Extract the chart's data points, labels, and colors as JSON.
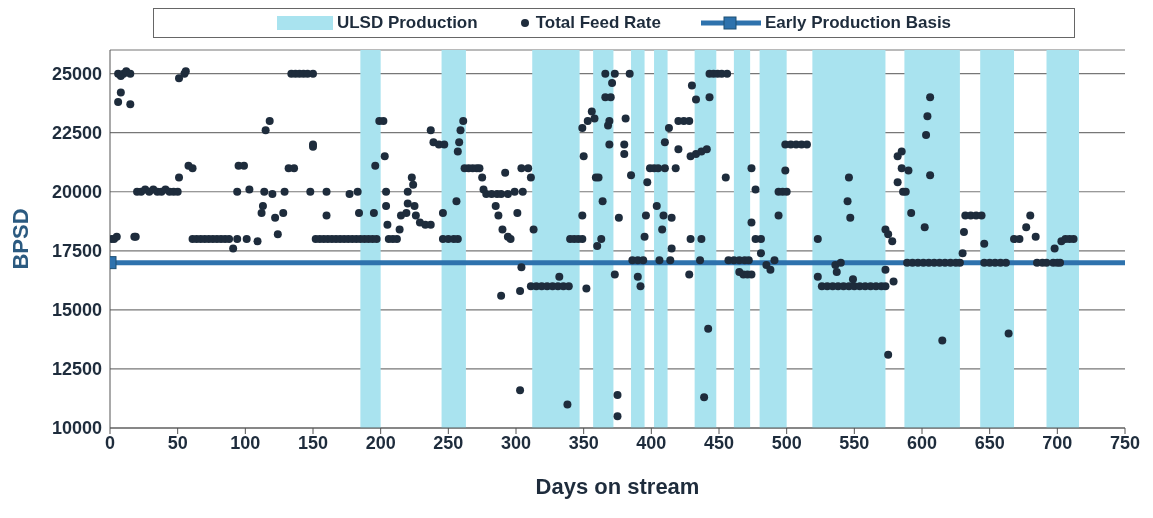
{
  "chart_data": {
    "type": "scatter",
    "xlabel": "Days on stream",
    "ylabel": "BPSD",
    "xlim": [
      0,
      750
    ],
    "xticks": [
      0,
      50,
      100,
      150,
      200,
      250,
      300,
      350,
      400,
      450,
      500,
      550,
      600,
      650,
      700,
      750
    ],
    "ylim": [
      10000,
      26000
    ],
    "yticks": [
      10000,
      12500,
      15000,
      17500,
      20000,
      22500,
      25000
    ],
    "grid": "y",
    "legend": "top",
    "bands": [
      {
        "axis": "x",
        "from": 185,
        "to": 200,
        "label": "ULSD Production",
        "color": "#a9e3ef"
      },
      {
        "axis": "x",
        "from": 245,
        "to": 263,
        "label": null,
        "color": "#a9e3ef"
      },
      {
        "axis": "x",
        "from": 312,
        "to": 347,
        "label": null,
        "color": "#a9e3ef"
      },
      {
        "axis": "x",
        "from": 357,
        "to": 372,
        "label": null,
        "color": "#a9e3ef"
      },
      {
        "axis": "x",
        "from": 385,
        "to": 395,
        "label": null,
        "color": "#a9e3ef"
      },
      {
        "axis": "x",
        "from": 402,
        "to": 412,
        "label": null,
        "color": "#a9e3ef"
      },
      {
        "axis": "x",
        "from": 432,
        "to": 448,
        "label": null,
        "color": "#a9e3ef"
      },
      {
        "axis": "x",
        "from": 461,
        "to": 473,
        "label": null,
        "color": "#a9e3ef"
      },
      {
        "axis": "x",
        "from": 480,
        "to": 500,
        "label": null,
        "color": "#a9e3ef"
      },
      {
        "axis": "x",
        "from": 519,
        "to": 573,
        "label": null,
        "color": "#a9e3ef"
      },
      {
        "axis": "x",
        "from": 587,
        "to": 628,
        "label": null,
        "color": "#a9e3ef"
      },
      {
        "axis": "x",
        "from": 643,
        "to": 668,
        "label": null,
        "color": "#a9e3ef"
      },
      {
        "axis": "x",
        "from": 692,
        "to": 716,
        "label": null,
        "color": "#a9e3ef"
      }
    ],
    "series": [
      {
        "name": "Total Feed Rate",
        "color": "#1e2c3c",
        "marker": "circle",
        "x": [
          1,
          3,
          5,
          6,
          8,
          10,
          12,
          15,
          8,
          6,
          15,
          18,
          19,
          20,
          23,
          26,
          29,
          32,
          35,
          38,
          41,
          44,
          47,
          50,
          51,
          58,
          61,
          51,
          55,
          56,
          61,
          64,
          67,
          70,
          73,
          76,
          79,
          82,
          85,
          88,
          91,
          94,
          95,
          99,
          94,
          103,
          101,
          109,
          114,
          120,
          113,
          112,
          115,
          118,
          124,
          122,
          128,
          129,
          132,
          136,
          134,
          137,
          140,
          143,
          146,
          150,
          148,
          160,
          150,
          150,
          160,
          152,
          155,
          158,
          161,
          164,
          167,
          170,
          173,
          176,
          179,
          182,
          185,
          177,
          183,
          184,
          188,
          191,
          194,
          197,
          196,
          195,
          203,
          199,
          202,
          204,
          204,
          205,
          206,
          209,
          212,
          214,
          215,
          219,
          220,
          223,
          224,
          220,
          225,
          226,
          229,
          233,
          237,
          237,
          239,
          243,
          247,
          246,
          246,
          250,
          254,
          257,
          256,
          257,
          258,
          259,
          261,
          262,
          265,
          268,
          271,
          273,
          275,
          276,
          278,
          282,
          286,
          289,
          285,
          287,
          292,
          290,
          294,
          296,
          294,
          299,
          305,
          301,
          304,
          309,
          311,
          313,
          289,
          303,
          304,
          303,
          338,
          311,
          315,
          319,
          323,
          327,
          331,
          335,
          339,
          332,
          340,
          343,
          346,
          349,
          352,
          349,
          350,
          349,
          353,
          356,
          358,
          359,
          361,
          364,
          360,
          363,
          366,
          366,
          368,
          369,
          369,
          370,
          371,
          373,
          375,
          375,
          376,
          373,
          380,
          380,
          381,
          384,
          385,
          386,
          390,
          394,
          390,
          392,
          395,
          396,
          397,
          399,
          402,
          405,
          404,
          409,
          408,
          415,
          406,
          414,
          415,
          410,
          418,
          410,
          413,
          420,
          420,
          424,
          428,
          428,
          429,
          429,
          433,
          437,
          441,
          430,
          433,
          443,
          437,
          436,
          442,
          439,
          443,
          446,
          449,
          452,
          456,
          455,
          457,
          461,
          465,
          469,
          472,
          465,
          468,
          471,
          474,
          474,
          477,
          474,
          477,
          481,
          481,
          485,
          488,
          491,
          494,
          494,
          497,
          500,
          499,
          499,
          503,
          507,
          511,
          515,
          523,
          523,
          526,
          530,
          534,
          538,
          542,
          546,
          550,
          554,
          558,
          562,
          566,
          570,
          573,
          536,
          537,
          549,
          546,
          545,
          547,
          540,
          573,
          575,
          578,
          573,
          579,
          575,
          582,
          585,
          585,
          590,
          582,
          586,
          588,
          592,
          589,
          593,
          597,
          601,
          605,
          609,
          613,
          617,
          621,
          625,
          628,
          602,
          603,
          604,
          606,
          606,
          615,
          630,
          631,
          632,
          636,
          640,
          644,
          646,
          646,
          650,
          654,
          658,
          662,
          664,
          668,
          672,
          677,
          680,
          684,
          685,
          689,
          692,
          697,
          700,
          702,
          698,
          703,
          706,
          709,
          712
        ],
        "values": [
          18000,
          18000,
          18100,
          25000,
          24900,
          25000,
          25100,
          25000,
          24200,
          23800,
          23700,
          18100,
          18100,
          20000,
          20000,
          20100,
          20000,
          20100,
          20000,
          20000,
          20100,
          20000,
          20000,
          20000,
          20600,
          21100,
          21000,
          24800,
          25000,
          25100,
          18000,
          18000,
          18000,
          18000,
          18000,
          18000,
          18000,
          18000,
          18000,
          18000,
          17600,
          18000,
          21100,
          21100,
          20000,
          20100,
          18000,
          17900,
          20000,
          19900,
          19400,
          19100,
          22600,
          23000,
          18200,
          18900,
          19100,
          20000,
          21000,
          21000,
          25000,
          25000,
          25000,
          25000,
          25000,
          25000,
          20000,
          20000,
          22000,
          21900,
          19000,
          18000,
          18000,
          18000,
          18000,
          18000,
          18000,
          18000,
          18000,
          18000,
          18000,
          18000,
          18000,
          19900,
          20000,
          19100,
          18000,
          18000,
          18000,
          18000,
          21100,
          19100,
          21500,
          23000,
          23000,
          20000,
          19400,
          18600,
          18000,
          18000,
          18000,
          18400,
          19000,
          19100,
          20000,
          20600,
          20300,
          19500,
          19400,
          19000,
          18700,
          18600,
          18600,
          22600,
          22100,
          22000,
          22000,
          19100,
          18000,
          18000,
          18000,
          18000,
          19600,
          21700,
          22100,
          22600,
          23000,
          21000,
          21000,
          21000,
          21000,
          21000,
          20600,
          20100,
          19900,
          19900,
          19900,
          19900,
          19400,
          19000,
          20800,
          18400,
          18100,
          18000,
          19900,
          20000,
          20000,
          19100,
          21000,
          21000,
          20600,
          18400,
          15600,
          15800,
          16800,
          11600,
          11000,
          16000,
          16000,
          16000,
          16000,
          16000,
          16000,
          16000,
          16000,
          16400,
          18000,
          18000,
          18000,
          18000,
          15900,
          19000,
          21500,
          22700,
          23000,
          23400,
          23100,
          20600,
          20600,
          19600,
          17700,
          18000,
          25000,
          24000,
          22800,
          23000,
          22000,
          24000,
          24600,
          25000,
          11400,
          10500,
          18900,
          16500,
          22000,
          21600,
          23100,
          25000,
          20700,
          17100,
          17100,
          17100,
          16400,
          16000,
          18100,
          19000,
          20400,
          21000,
          21000,
          21000,
          19400,
          19000,
          18400,
          18900,
          17100,
          17100,
          17600,
          21000,
          21000,
          22100,
          22700,
          21800,
          23000,
          23000,
          23000,
          16500,
          18000,
          21500,
          21600,
          21700,
          21800,
          24500,
          23900,
          24000,
          18000,
          17100,
          14200,
          11300,
          25000,
          25000,
          25000,
          25000,
          25000,
          20600,
          17100,
          17100,
          17100,
          17100,
          17100,
          16600,
          16500,
          16500,
          16500,
          21000,
          20100,
          18700,
          18000,
          18000,
          17400,
          16900,
          16700,
          17100,
          19000,
          20000,
          20000,
          20000,
          20900,
          22000,
          22000,
          22000,
          22000,
          22000,
          18000,
          16400,
          16000,
          16000,
          16000,
          16000,
          16000,
          16000,
          16000,
          16000,
          16000,
          16000,
          16000,
          16000,
          16000,
          16900,
          16600,
          16300,
          20600,
          19600,
          18900,
          17000,
          18400,
          18200,
          17900,
          16700,
          16200,
          13100,
          21500,
          21700,
          21000,
          20900,
          20400,
          20000,
          20000,
          19100,
          17000,
          17000,
          17000,
          17000,
          17000,
          17000,
          17000,
          17000,
          17000,
          17000,
          17000,
          18500,
          22400,
          23200,
          24000,
          20700,
          13700,
          17400,
          18300,
          19000,
          19000,
          19000,
          19000,
          17800,
          17000,
          17000,
          17000,
          17000,
          17000,
          14000,
          18000,
          18000,
          18500,
          19000,
          18100,
          17000,
          17000,
          17000,
          17000,
          17000,
          17000,
          17600,
          17900,
          18000,
          18000,
          18000
        ]
      },
      {
        "name": "Early Production Basis",
        "type": "line",
        "color": "#2e72ad",
        "marker": "square",
        "x": [
          0,
          750
        ],
        "values": [
          17000,
          17000
        ]
      }
    ]
  }
}
